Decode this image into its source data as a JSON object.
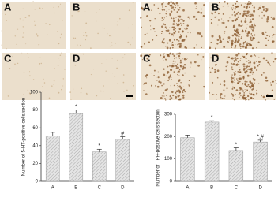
{
  "image_panels": [
    {
      "labels": [
        "A",
        "B",
        "C",
        "D"
      ]
    },
    {
      "labels": [
        "A",
        "B",
        "C",
        "D"
      ]
    }
  ],
  "chart_data": [
    {
      "type": "bar",
      "y_label": "Number of 5-HT-positive cells/section",
      "categories": [
        "A",
        "B",
        "C",
        "D"
      ],
      "values": [
        51,
        76,
        33,
        47
      ],
      "errors": [
        4,
        4,
        3,
        3
      ],
      "significance": [
        null,
        "*",
        "*",
        "#"
      ],
      "color": "#d9d9d9",
      "ylim": [
        0,
        100
      ],
      "yticks": [
        0,
        20,
        40,
        60,
        80,
        100
      ]
    },
    {
      "type": "bar",
      "y_label": "Number of TPH-positive cells/section",
      "categories": [
        "A",
        "B",
        "C",
        "D"
      ],
      "values": [
        195,
        265,
        138,
        176
      ],
      "errors": [
        12,
        6,
        12,
        8
      ],
      "significance": [
        null,
        "*",
        "*",
        "*,#"
      ],
      "color": "#d9d9d9",
      "ylim": [
        0,
        300
      ],
      "yticks": [
        0,
        100,
        200,
        300
      ]
    }
  ]
}
